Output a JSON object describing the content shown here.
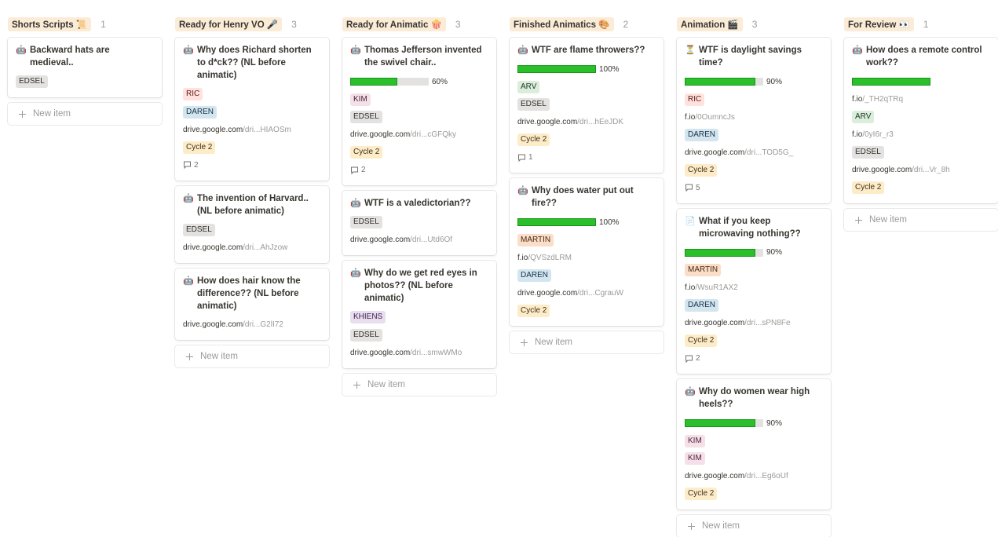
{
  "new_item_label": "New item",
  "columns": [
    {
      "title": "Shorts Scripts 📜",
      "count": "1",
      "cards": [
        {
          "icon": "🤖",
          "title": "Backward hats are medieval..",
          "props": [
            {
              "tag": "EDSEL",
              "color": "gray"
            }
          ]
        }
      ]
    },
    {
      "title": "Ready for Henry VO 🎤",
      "count": "3",
      "cards": [
        {
          "icon": "🤖",
          "title": "Why does Richard shorten to d*ck?? (NL before animatic)",
          "props": [
            {
              "tag": "RIC",
              "color": "red"
            },
            {
              "tag": "DAREN",
              "color": "blue"
            },
            {
              "host": "drive.google.com",
              "path": "/dri...HIAOSm"
            },
            {
              "tag": "Cycle 2",
              "color": "yellow"
            }
          ],
          "comments": "2"
        },
        {
          "icon": "🤖",
          "title": "The invention of Harvard.. (NL before animatic)",
          "props": [
            {
              "tag": "EDSEL",
              "color": "gray"
            },
            {
              "host": "drive.google.com",
              "path": "/dri...AhJzow"
            }
          ]
        },
        {
          "icon": "🤖",
          "title": "How does hair know the difference??  (NL before animatic)",
          "props": [
            {
              "host": "drive.google.com",
              "path": "/dri...G2lI72"
            }
          ]
        }
      ]
    },
    {
      "title": "Ready for Animatic 🍿",
      "count": "3",
      "cards": [
        {
          "icon": "🤖",
          "title": "Thomas Jefferson invented the swivel chair..",
          "props": [
            {
              "progress": 60,
              "label": "60%"
            },
            {
              "tag": "KIM",
              "color": "pink"
            },
            {
              "tag": "EDSEL",
              "color": "gray"
            },
            {
              "host": "drive.google.com",
              "path": "/dri...cGFQky"
            },
            {
              "tag": "Cycle 2",
              "color": "yellow"
            }
          ],
          "comments": "2"
        },
        {
          "icon": "🤖",
          "title": "WTF is a valedictorian??",
          "props": [
            {
              "tag": "EDSEL",
              "color": "gray"
            },
            {
              "host": "drive.google.com",
              "path": "/dri...Utd6Of"
            }
          ]
        },
        {
          "icon": "🤖",
          "title": "Why do we get red eyes in photos?? (NL before animatic)",
          "props": [
            {
              "tag": "KHIENS",
              "color": "purple"
            },
            {
              "tag": "EDSEL",
              "color": "gray"
            },
            {
              "host": "drive.google.com",
              "path": "/dri...smwWMo"
            }
          ]
        }
      ]
    },
    {
      "title": "Finished Animatics 🎨",
      "count": "2",
      "cards": [
        {
          "icon": "🤖",
          "title": "WTF are flame throwers??",
          "props": [
            {
              "progress": 100,
              "label": "100%"
            },
            {
              "tag": "ARV",
              "color": "green"
            },
            {
              "tag": "EDSEL",
              "color": "gray"
            },
            {
              "host": "drive.google.com",
              "path": "/dri...hEeJDK"
            },
            {
              "tag": "Cycle 2",
              "color": "yellow"
            }
          ],
          "comments": "1"
        },
        {
          "icon": "🤖",
          "title": "Why does water put out fire??",
          "props": [
            {
              "progress": 100,
              "label": "100%"
            },
            {
              "tag": "MARTIN",
              "color": "orange"
            },
            {
              "host": "f.io",
              "path": "/QVSzdLRM"
            },
            {
              "tag": "DAREN",
              "color": "blue"
            },
            {
              "host": "drive.google.com",
              "path": "/dri...CgrauW"
            },
            {
              "tag": "Cycle 2",
              "color": "yellow"
            }
          ]
        }
      ]
    },
    {
      "title": "Animation 🎬",
      "count": "3",
      "cards": [
        {
          "icon": "⏳",
          "title": "WTF is daylight savings time?",
          "props": [
            {
              "progress": 90,
              "label": "90%"
            },
            {
              "tag": "RIC",
              "color": "red"
            },
            {
              "host": "f.io",
              "path": "/0OumncJs"
            },
            {
              "tag": "DAREN",
              "color": "blue"
            },
            {
              "host": "drive.google.com",
              "path": "/dri...TOD5G_"
            },
            {
              "tag": "Cycle 2",
              "color": "yellow"
            }
          ],
          "comments": "5"
        },
        {
          "icon": "📄",
          "title": "What if you keep microwaving nothing??",
          "props": [
            {
              "progress": 90,
              "label": "90%"
            },
            {
              "tag": "MARTIN",
              "color": "orange"
            },
            {
              "host": "f.io",
              "path": "/WsuR1AX2"
            },
            {
              "tag": "DAREN",
              "color": "blue"
            },
            {
              "host": "drive.google.com",
              "path": "/dri...sPN8Fe"
            },
            {
              "tag": "Cycle 2",
              "color": "yellow"
            }
          ],
          "comments": "2"
        },
        {
          "icon": "🤖",
          "title": "Why do women wear high heels??",
          "props": [
            {
              "progress": 90,
              "label": "90%"
            },
            {
              "tag": "KIM",
              "color": "pink"
            },
            {
              "tag": "KIM",
              "color": "pink"
            },
            {
              "host": "drive.google.com",
              "path": "/dri...Eg6oUf"
            },
            {
              "tag": "Cycle 2",
              "color": "yellow"
            }
          ]
        }
      ]
    },
    {
      "title": "For Review 👀",
      "count": "1",
      "cards": [
        {
          "icon": "🤖",
          "title": "How does a remote control work??",
          "props": [
            {
              "progress": 100
            },
            {
              "host": "f.io",
              "path": "/_TH2qTRq"
            },
            {
              "tag": "ARV",
              "color": "green"
            },
            {
              "host": "f.io",
              "path": "/0yI6r_r3"
            },
            {
              "tag": "EDSEL",
              "color": "gray"
            },
            {
              "host": "drive.google.com",
              "path": "/dri...Vr_8h"
            },
            {
              "tag": "Cycle 2",
              "color": "yellow"
            }
          ]
        }
      ]
    }
  ]
}
